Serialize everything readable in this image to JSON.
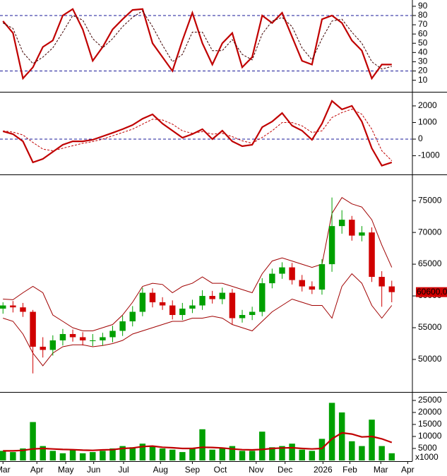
{
  "chart_data": [
    {
      "type": "line",
      "ylim": [
        -1,
        94.5
      ],
      "yticks": [
        10,
        20,
        30,
        40,
        50,
        60,
        70,
        80,
        90
      ],
      "hlines": [
        20,
        80
      ],
      "series": [
        {
          "color": "#c00000",
          "values": [
            74,
            61,
            12,
            24,
            46,
            53,
            80,
            87,
            65,
            31,
            46,
            65,
            76,
            86,
            87,
            50,
            35,
            20,
            53,
            83,
            50,
            27,
            50,
            61,
            24,
            35,
            80,
            72,
            83,
            57,
            31,
            27,
            76,
            80,
            72,
            53,
            42,
            12,
            27,
            27
          ]
        },
        {
          "color": "#400000",
          "dash": true,
          "values": [
            72,
            66,
            40,
            28,
            35,
            45,
            62,
            80,
            75,
            55,
            45,
            55,
            68,
            78,
            85,
            68,
            48,
            30,
            38,
            62,
            62,
            42,
            42,
            54,
            38,
            32,
            60,
            74,
            78,
            68,
            45,
            32,
            55,
            74,
            76,
            62,
            50,
            30,
            22,
            25
          ]
        }
      ]
    },
    {
      "type": "line",
      "ylim": [
        -2040,
        2720
      ],
      "yticks": [
        -1000,
        0,
        1000,
        2000
      ],
      "hlines": [
        0
      ],
      "series": [
        {
          "color": "#c00000",
          "values": [
            470,
            300,
            -130,
            -1400,
            -1190,
            -765,
            -340,
            -130,
            -130,
            -40,
            170,
            380,
            600,
            850,
            1230,
            1490,
            935,
            510,
            85,
            300,
            600,
            0,
            510,
            -130,
            -425,
            -340,
            720,
            1060,
            1570,
            810,
            510,
            -40,
            935,
            2300,
            1790,
            2000,
            1060,
            -550,
            -1600,
            -1400
          ]
        },
        {
          "color": "#c00000",
          "dash": true,
          "values": [
            500,
            420,
            250,
            -200,
            -600,
            -700,
            -550,
            -400,
            -250,
            -150,
            0,
            200,
            400,
            600,
            900,
            1200,
            1150,
            900,
            500,
            350,
            450,
            300,
            350,
            150,
            -100,
            -250,
            100,
            500,
            1000,
            1000,
            800,
            400,
            500,
            1300,
            1600,
            1800,
            1500,
            600,
            -700,
            -1300
          ]
        }
      ]
    },
    {
      "type": "candlestick",
      "ylim": [
        45100,
        78800
      ],
      "yticks": [
        50000,
        55000,
        60000,
        65000,
        70000,
        75000
      ],
      "up_color": "#00a000",
      "down_color": "#d00000",
      "band_color": "#a00000",
      "last_price": {
        "value": 60600,
        "label": "60600.00"
      },
      "open": [
        58000,
        58500,
        58200,
        57500,
        52000,
        51500,
        53000,
        54000,
        53500,
        53000,
        53000,
        53500,
        54500,
        56000,
        57500,
        60500,
        59000,
        58500,
        57000,
        58000,
        58500,
        60000,
        59500,
        60500,
        56500,
        57000,
        57500,
        62000,
        63500,
        64500,
        62500,
        61500,
        61000,
        65000,
        71000,
        72000,
        69500,
        70000,
        63000,
        61500
      ],
      "high": [
        59000,
        59200,
        58900,
        57800,
        53500,
        53800,
        54800,
        54700,
        54300,
        54000,
        54200,
        55300,
        56900,
        58400,
        61300,
        61200,
        59800,
        59300,
        58900,
        59400,
        60900,
        60800,
        61300,
        61100,
        57800,
        58300,
        62800,
        64300,
        65300,
        65200,
        63300,
        62300,
        65800,
        75500,
        73500,
        72600,
        71000,
        70800,
        63900,
        62400
      ],
      "low": [
        57200,
        57400,
        56700,
        47800,
        50300,
        50600,
        52200,
        52800,
        52200,
        52100,
        52200,
        52700,
        53700,
        55200,
        56800,
        58200,
        57800,
        56300,
        56200,
        57300,
        57800,
        58800,
        58700,
        55500,
        55800,
        56200,
        56800,
        61200,
        62700,
        61800,
        60700,
        60300,
        60200,
        63800,
        69800,
        68700,
        68600,
        62200,
        58300,
        59000
      ],
      "close": [
        58500,
        58200,
        57500,
        52000,
        51500,
        53000,
        54000,
        53500,
        53000,
        53000,
        53500,
        54500,
        56000,
        57500,
        60500,
        59000,
        58500,
        57000,
        58000,
        58500,
        60000,
        59500,
        60500,
        56500,
        57000,
        57500,
        62000,
        63500,
        64500,
        62500,
        61500,
        61000,
        65000,
        71000,
        72000,
        69500,
        70000,
        63000,
        61500,
        60600
      ],
      "upper_band": [
        59500,
        59400,
        60500,
        61500,
        60500,
        57000,
        56000,
        55000,
        54500,
        54500,
        55000,
        55500,
        57000,
        59000,
        61500,
        62000,
        61800,
        60500,
        61500,
        62000,
        63000,
        62000,
        62000,
        61500,
        61000,
        60500,
        63500,
        65500,
        66000,
        65500,
        65000,
        64500,
        65000,
        73000,
        75500,
        74500,
        74000,
        72000,
        68000,
        64500
      ],
      "lower_band": [
        56500,
        56000,
        54000,
        51000,
        49000,
        51000,
        52000,
        52300,
        52300,
        52000,
        52200,
        52500,
        53000,
        54000,
        54500,
        55000,
        55500,
        56000,
        56000,
        56500,
        56500,
        56800,
        56500,
        55500,
        55000,
        54500,
        56000,
        57500,
        58500,
        59500,
        59000,
        58500,
        58500,
        56500,
        61500,
        63500,
        62000,
        58500,
        56500,
        58500
      ]
    },
    {
      "type": "bar",
      "ylim": [
        0,
        27650
      ],
      "yticks": [
        5000,
        10000,
        15000,
        20000,
        25000
      ],
      "unit_label": "x1000",
      "color": "#00a000",
      "ma_color": "#c00000",
      "xlim": [
        -0.3,
        41
      ],
      "xticks": [
        {
          "value": 0,
          "label": "Mar"
        },
        {
          "value": 3.4,
          "label": "Apr"
        },
        {
          "value": 6.3,
          "label": "May"
        },
        {
          "value": 9.1,
          "label": "Jun"
        },
        {
          "value": 12.1,
          "label": "Jul"
        },
        {
          "value": 15.8,
          "label": "Aug"
        },
        {
          "value": 19.0,
          "label": "Sep"
        },
        {
          "value": 21.8,
          "label": "Oct"
        },
        {
          "value": 25.4,
          "label": "Nov"
        },
        {
          "value": 28.3,
          "label": "Dec"
        },
        {
          "value": 32.1,
          "label": "2026"
        },
        {
          "value": 34.8,
          "label": "Feb"
        },
        {
          "value": 37.9,
          "label": "Mar"
        },
        {
          "value": 40.6,
          "label": "Apr"
        }
      ],
      "values": [
        4000,
        3500,
        5000,
        16000,
        6000,
        4000,
        3000,
        4500,
        3000,
        3500,
        4000,
        5000,
        6000,
        5500,
        7000,
        6000,
        5000,
        4500,
        3500,
        5000,
        13000,
        4500,
        5000,
        6000,
        4000,
        4000,
        12000,
        5500,
        6000,
        7000,
        4500,
        4000,
        9000,
        24000,
        20000,
        8000,
        6000,
        17000,
        6000,
        3000
      ],
      "ma": [
        4000,
        4000,
        4200,
        4800,
        5000,
        4800,
        4600,
        4500,
        4300,
        4200,
        4400,
        4500,
        5000,
        5200,
        5800,
        6000,
        5500,
        5300,
        5000,
        5000,
        5500,
        5400,
        5200,
        4800,
        4500,
        4400,
        4600,
        5000,
        5200,
        5300,
        5000,
        4800,
        5000,
        9000,
        11500,
        11000,
        9800,
        10000,
        9000,
        7500
      ]
    }
  ]
}
